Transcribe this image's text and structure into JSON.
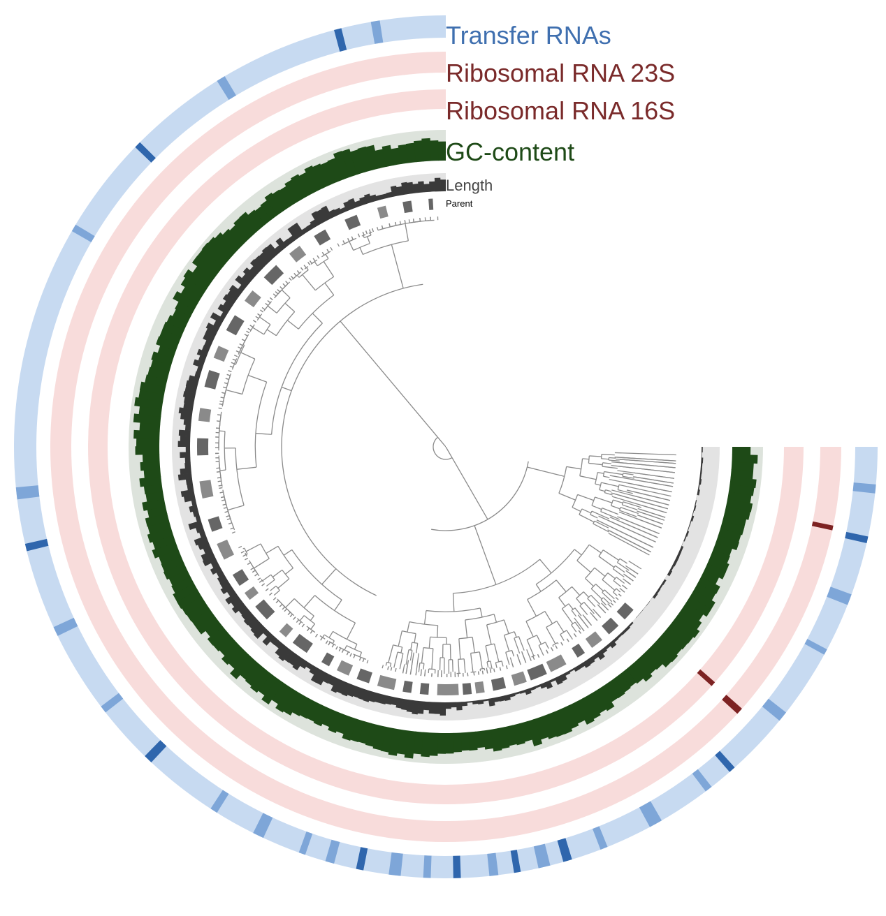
{
  "layers": [
    {
      "key": "trna",
      "label": "Transfer RNAs",
      "label_color": "#3f6faf",
      "bg": "#c7daf1",
      "mark": "#2f66ad",
      "mid": "#7ea6d8"
    },
    {
      "key": "r23s",
      "label": "Ribosomal RNA 23S",
      "label_color": "#7a2a2a",
      "bg": "#f8dcdb",
      "mark": "#7d2222"
    },
    {
      "key": "r16s",
      "label": "Ribosomal RNA 16S",
      "label_color": "#7a2a2a",
      "bg": "#f8dcdb",
      "mark": "#7d2222"
    },
    {
      "key": "gc",
      "label": "GC-content",
      "label_color": "#1e4a17",
      "bg": "#dde3dc",
      "mark": "#1e4a17"
    },
    {
      "key": "length",
      "label": "Length",
      "label_color": "#444444",
      "bg": "#e3e3e3",
      "mark": "#3a3a3a"
    },
    {
      "key": "parent",
      "label": "Parent",
      "label_color": "#000000",
      "mark": "#666666",
      "mark_light": "#8a8a8a"
    }
  ],
  "colors": {
    "tree": "#8a8a8a",
    "background": "#ffffff"
  }
}
